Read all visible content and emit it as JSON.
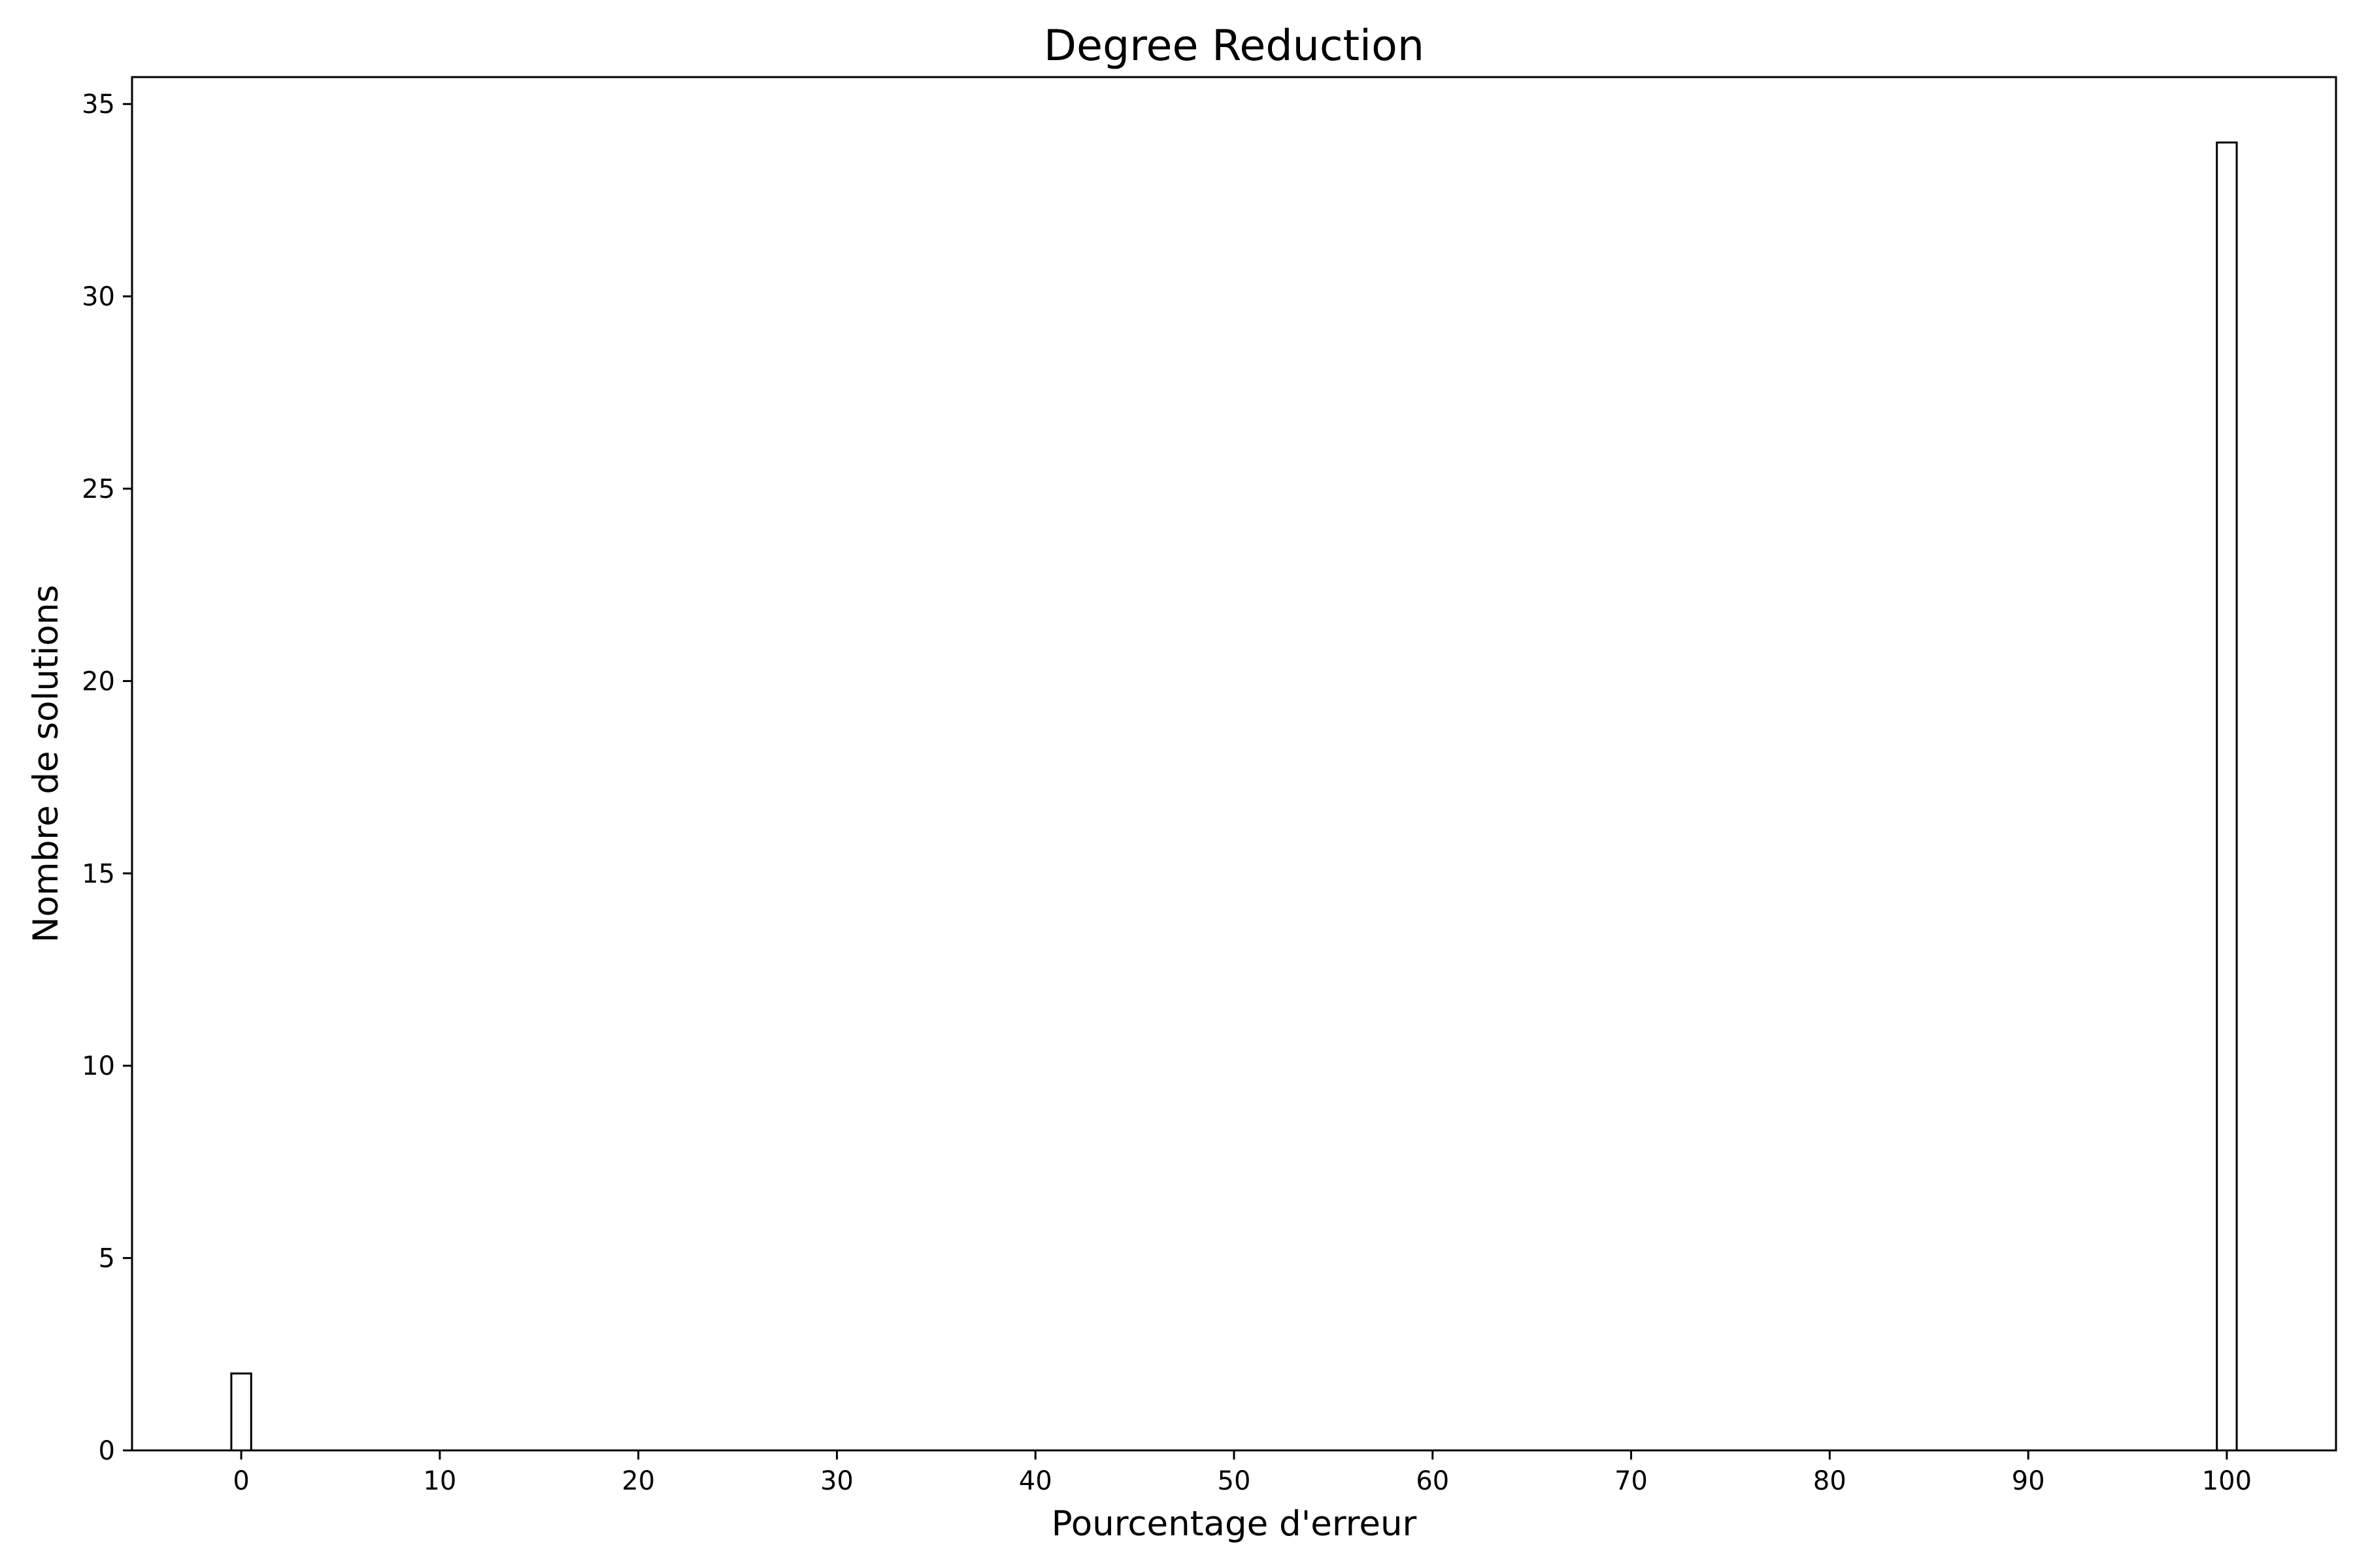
{
  "chart_data": {
    "type": "bar",
    "title": "Degree Reduction",
    "xlabel": "Pourcentage d'erreur",
    "ylabel": "Nombre de solutions",
    "x": [
      0,
      100
    ],
    "values": [
      2,
      34
    ],
    "bar_width": 1,
    "xlim": [
      -5.5,
      105.5
    ],
    "ylim": [
      0,
      35.7
    ],
    "xticks": [
      0,
      10,
      20,
      30,
      40,
      50,
      60,
      70,
      80,
      90,
      100
    ],
    "yticks": [
      0,
      5,
      10,
      15,
      20,
      25,
      30,
      35
    ],
    "grid": false,
    "bar_fill": "#ffffff",
    "bar_edge": "#000000"
  }
}
